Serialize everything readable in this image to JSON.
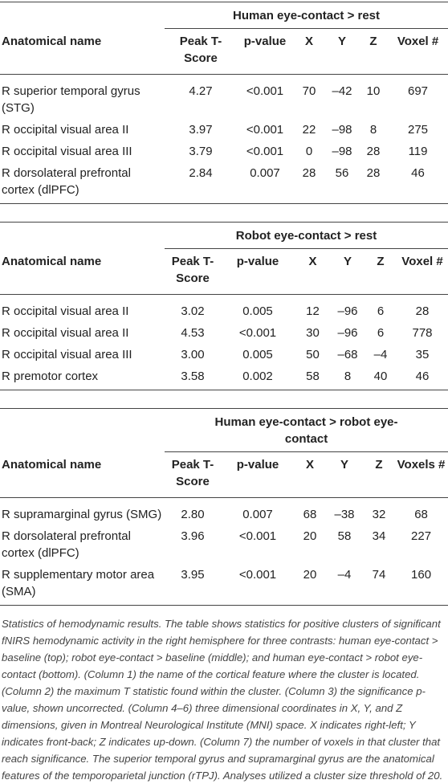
{
  "tables": [
    {
      "title": "Human eye-contact > rest",
      "columns": [
        "Anatomical name",
        "Peak T-Score",
        "p-value",
        "X",
        "Y",
        "Z",
        "Voxel #"
      ],
      "rows": [
        [
          "R superior temporal gyrus (STG)",
          "4.27",
          "<0.001",
          "70",
          "–42",
          "10",
          "697"
        ],
        [
          "R occipital visual area II",
          "3.97",
          "<0.001",
          "22",
          "–98",
          "8",
          "275"
        ],
        [
          "R occipital visual area III",
          "3.79",
          "<0.001",
          "0",
          "–98",
          "28",
          "119"
        ],
        [
          "R dorsolateral prefrontal cortex (dlPFC)",
          "2.84",
          "0.007",
          "28",
          "56",
          "28",
          "46"
        ]
      ]
    },
    {
      "title": "Robot eye-contact > rest",
      "columns": [
        "Anatomical name",
        "Peak T-Score",
        "p-value",
        "X",
        "Y",
        "Z",
        "Voxel #"
      ],
      "rows": [
        [
          "R occipital visual area II",
          "3.02",
          "0.005",
          "12",
          "–96",
          "6",
          "28"
        ],
        [
          "R occipital visual area II",
          "4.53",
          "<0.001",
          "30",
          "–96",
          "6",
          "778"
        ],
        [
          "R occipital visual area III",
          "3.00",
          "0.005",
          "50",
          "–68",
          "–4",
          "35"
        ],
        [
          "R premotor cortex",
          "3.58",
          "0.002",
          "58",
          "8",
          "40",
          "46"
        ]
      ]
    },
    {
      "title": "Human eye-contact > robot eye-contact",
      "columns": [
        "Anatomical name",
        "Peak T-Score",
        "p-value",
        "X",
        "Y",
        "Z",
        "Voxels #"
      ],
      "rows": [
        [
          "R supramarginal gyrus (SMG)",
          "2.80",
          "0.007",
          "68",
          "–38",
          "32",
          "68"
        ],
        [
          "R dorsolateral prefrontal cortex (dlPFC)",
          "3.96",
          "<0.001",
          "20",
          "58",
          "34",
          "227"
        ],
        [
          "R supplementary motor area (SMA)",
          "3.95",
          "<0.001",
          "20",
          "–4",
          "74",
          "160"
        ]
      ]
    }
  ],
  "caption": "Statistics of hemodynamic results. The table shows statistics for positive clusters of significant fNIRS hemodynamic activity in the right hemisphere for three contrasts: human eye-contact > baseline (top); robot eye-contact > baseline (middle); and human eye-contact > robot eye-contact (bottom). (Column 1) the name of the cortical feature where the cluster is located. (Column 2) the maximum T statistic found within the cluster. (Column 3) the significance p-value, shown uncorrected. (Column 4–6) three dimensional coordinates in X, Y, and Z dimensions, given in Montreal Neurological Institute (MNI) space. X indicates right-left; Y indicates front-back; Z indicates up-down. (Column 7) the number of voxels in that cluster that reach significance. The superior temporal gyrus and supramarginal gyrus are the anatomical features of the temporoparietal junction (rTPJ). Analyses utilized a cluster size threshold of 20."
}
